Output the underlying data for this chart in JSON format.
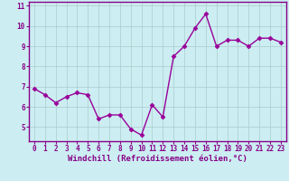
{
  "x": [
    0,
    1,
    2,
    3,
    4,
    5,
    6,
    7,
    8,
    9,
    10,
    11,
    12,
    13,
    14,
    15,
    16,
    17,
    18,
    19,
    20,
    21,
    22,
    23
  ],
  "y": [
    6.9,
    6.6,
    6.2,
    6.5,
    6.7,
    6.6,
    5.4,
    5.6,
    5.6,
    4.9,
    4.6,
    6.1,
    5.5,
    8.5,
    9.0,
    9.9,
    10.6,
    9.0,
    9.3,
    9.3,
    9.0,
    9.4,
    9.4,
    9.2
  ],
  "line_color": "#990099",
  "marker": "D",
  "markersize": 2.5,
  "linewidth": 1.0,
  "xlabel": "Windchill (Refroidissement éolien,°C)",
  "xlabel_fontsize": 6.5,
  "xlim": [
    -0.5,
    23.5
  ],
  "ylim": [
    4.3,
    11.2
  ],
  "yticks": [
    5,
    6,
    7,
    8,
    9,
    10,
    11
  ],
  "xticks": [
    0,
    1,
    2,
    3,
    4,
    5,
    6,
    7,
    8,
    9,
    10,
    11,
    12,
    13,
    14,
    15,
    16,
    17,
    18,
    19,
    20,
    21,
    22,
    23
  ],
  "background_color": "#cceef2",
  "grid_color": "#aacccc",
  "tick_fontsize": 5.5,
  "spine_color": "#880088",
  "label_color": "#880088"
}
